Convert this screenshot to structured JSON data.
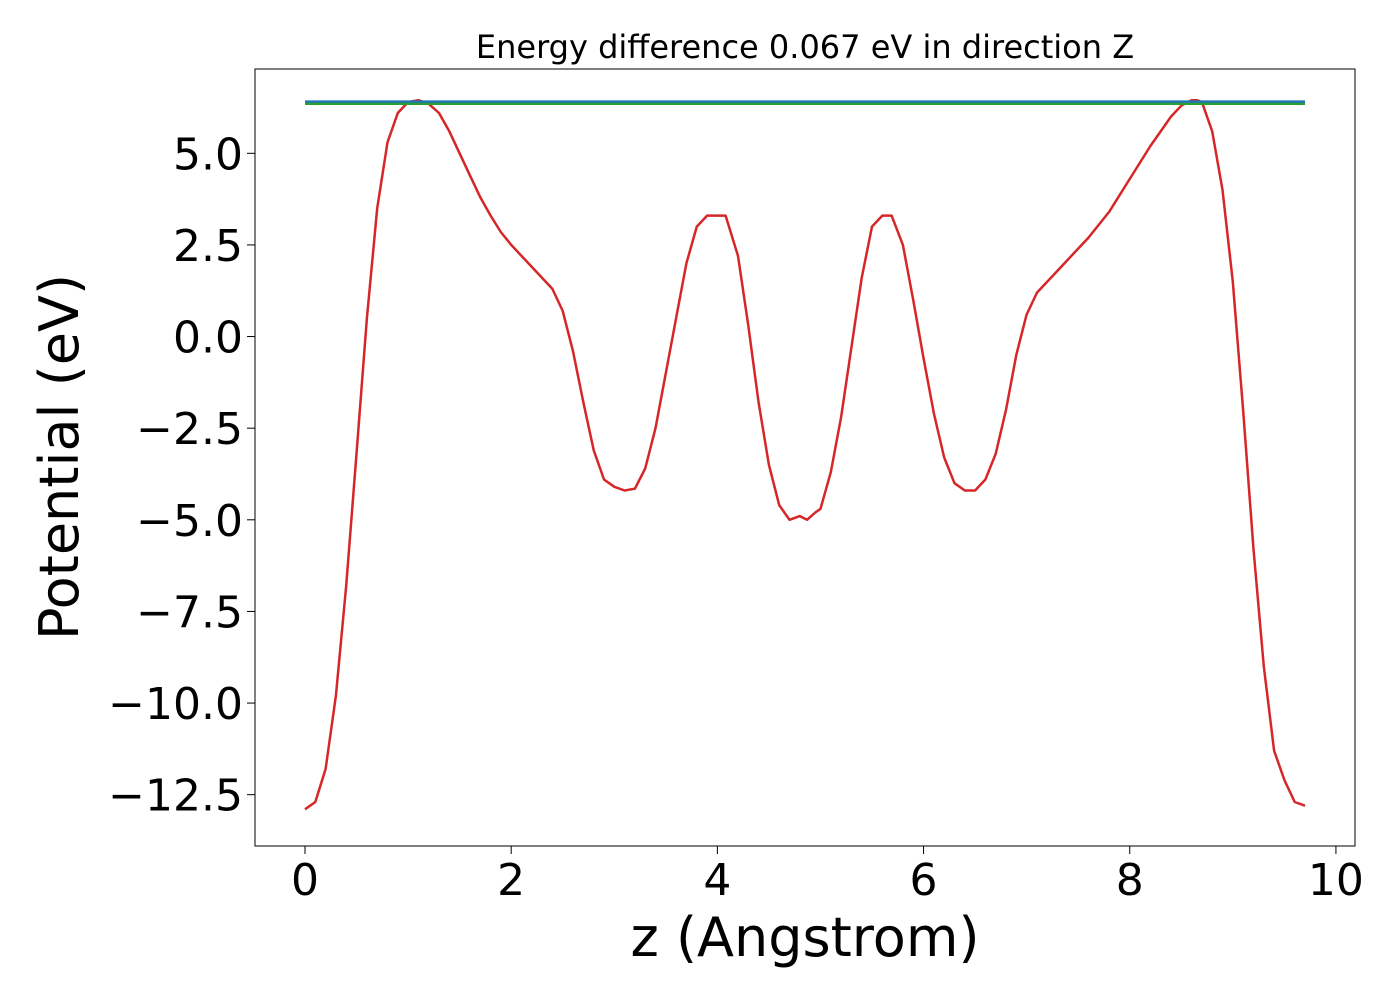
{
  "chart_data": {
    "type": "line",
    "title": "Energy difference 0.067 eV in direction Z",
    "xlabel": "z (Angstrom)",
    "ylabel": "Potential (eV)",
    "xlim": [
      -0.485,
      10.185
    ],
    "ylim": [
      -13.9,
      7.3
    ],
    "xticks": [
      0,
      2,
      4,
      6,
      8,
      10
    ],
    "xtick_labels": [
      "0",
      "2",
      "4",
      "6",
      "8",
      "10"
    ],
    "yticks": [
      5.0,
      2.5,
      0.0,
      -2.5,
      -5.0,
      -7.5,
      -10.0,
      -12.5
    ],
    "ytick_labels": [
      "5.0",
      "2.5",
      "0.0",
      "−2.5",
      "−5.0",
      "−7.5",
      "−10.0",
      "−12.5"
    ],
    "grid": false,
    "series": [
      {
        "color": "#d62728",
        "x": [
          0.0,
          0.1,
          0.2,
          0.3,
          0.4,
          0.5,
          0.6,
          0.7,
          0.8,
          0.9,
          1.0,
          1.1,
          1.2,
          1.3,
          1.4,
          1.5,
          1.6,
          1.7,
          1.8,
          1.9,
          2.0,
          2.1,
          2.2,
          2.3,
          2.4,
          2.5,
          2.6,
          2.7,
          2.8,
          2.9,
          3.0,
          3.1,
          3.2,
          3.3,
          3.4,
          3.5,
          3.6,
          3.7,
          3.8,
          3.9,
          4.0,
          4.08,
          4.2,
          4.3,
          4.4,
          4.5,
          4.6,
          4.7,
          4.8,
          4.87,
          4.95,
          5.0,
          5.1,
          5.2,
          5.3,
          5.4,
          5.5,
          5.6,
          5.69,
          5.8,
          5.9,
          6.0,
          6.1,
          6.2,
          6.3,
          6.4,
          6.5,
          6.6,
          6.7,
          6.8,
          6.9,
          7.0,
          7.1,
          7.2,
          7.3,
          7.4,
          7.6,
          7.8,
          8.0,
          8.2,
          8.4,
          8.5,
          8.6,
          8.65,
          8.7,
          8.8,
          8.9,
          9.0,
          9.1,
          9.2,
          9.3,
          9.4,
          9.5,
          9.6,
          9.7
        ],
        "values": [
          -12.9,
          -12.7,
          -11.8,
          -9.8,
          -6.8,
          -3.2,
          0.5,
          3.5,
          5.3,
          6.1,
          6.4,
          6.45,
          6.35,
          6.1,
          5.6,
          5.0,
          4.4,
          3.8,
          3.3,
          2.85,
          2.5,
          2.2,
          1.9,
          1.6,
          1.3,
          0.7,
          -0.4,
          -1.8,
          -3.1,
          -3.9,
          -4.1,
          -4.2,
          -4.15,
          -3.6,
          -2.5,
          -1.0,
          0.5,
          2.0,
          3.0,
          3.3,
          3.3,
          3.3,
          2.2,
          0.3,
          -1.8,
          -3.5,
          -4.6,
          -5.0,
          -4.9,
          -5.0,
          -4.8,
          -4.7,
          -3.7,
          -2.2,
          -0.3,
          1.6,
          3.0,
          3.3,
          3.3,
          2.5,
          1.0,
          -0.6,
          -2.1,
          -3.3,
          -4.0,
          -4.2,
          -4.2,
          -3.9,
          -3.2,
          -2.0,
          -0.5,
          0.6,
          1.2,
          1.5,
          1.8,
          2.1,
          2.7,
          3.4,
          4.3,
          5.2,
          6.0,
          6.3,
          6.45,
          6.45,
          6.4,
          5.6,
          4.0,
          1.5,
          -2.0,
          -5.8,
          -9.0,
          -11.3,
          -12.1,
          -12.7,
          -12.8
        ]
      },
      {
        "color": "#2ca02c",
        "x": [
          0.0,
          9.7
        ],
        "values": [
          6.35,
          6.35
        ]
      },
      {
        "color": "#1f77b4",
        "x": [
          0.0,
          9.7
        ],
        "values": [
          6.41,
          6.41
        ]
      }
    ]
  }
}
